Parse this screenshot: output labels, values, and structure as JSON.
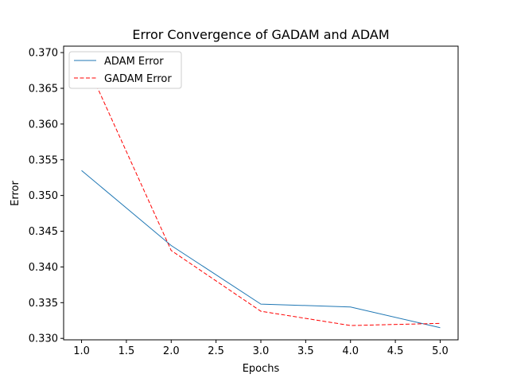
{
  "chart_data": {
    "type": "line",
    "title": "Error Convergence of GADAM and ADAM",
    "xlabel": "Epochs",
    "ylabel": "Error",
    "x": [
      1,
      2,
      3,
      4,
      5
    ],
    "xlim": [
      0.8,
      5.2
    ],
    "ylim": [
      0.3298,
      0.3709
    ],
    "x_ticks": [
      "1.0",
      "1.5",
      "2.0",
      "2.5",
      "3.0",
      "3.5",
      "4.0",
      "4.5",
      "5.0"
    ],
    "y_ticks": [
      "0.330",
      "0.335",
      "0.340",
      "0.345",
      "0.350",
      "0.355",
      "0.360",
      "0.365",
      "0.370"
    ],
    "grid": false,
    "legend_placement": "top-left",
    "series": [
      {
        "name": "ADAM Error",
        "values": [
          0.3535,
          0.343,
          0.3348,
          0.3344,
          0.3315
        ],
        "color": "#1f77b4",
        "style": "solid"
      },
      {
        "name": "GADAM Error",
        "values": [
          0.37,
          0.3423,
          0.3338,
          0.3318,
          0.3321
        ],
        "color": "#ff0000",
        "style": "dashed"
      }
    ]
  }
}
